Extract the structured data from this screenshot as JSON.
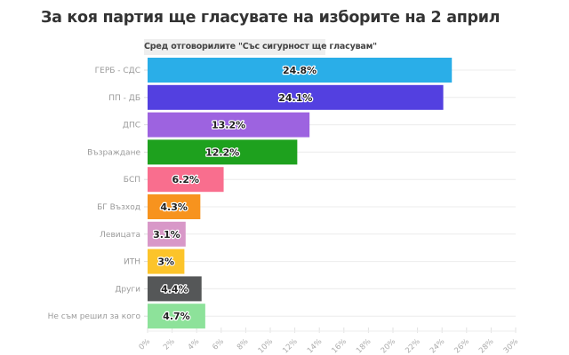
{
  "chart_data": {
    "type": "bar",
    "orientation": "horizontal",
    "title": "За коя партия ще гласувате на изборите на 2 април",
    "subtitle": "Сред отговорилите \"Със сигурност ще гласувам\"",
    "categories": [
      "ГЕРБ - СДС",
      "ПП - ДБ",
      "ДПС",
      "Възраждане",
      "БСП",
      "БГ Възход",
      "Левицата",
      "ИТН",
      "Други",
      "Не съм решил за кого"
    ],
    "values": [
      24.8,
      24.1,
      13.2,
      12.2,
      6.2,
      4.3,
      3.1,
      3,
      4.4,
      4.7
    ],
    "value_labels": [
      "24.8%",
      "24.1%",
      "13.2%",
      "12.2%",
      "6.2%",
      "4.3%",
      "3.1%",
      "3%",
      "4.4%",
      "4.7%"
    ],
    "colors": [
      "#2aaee8",
      "#5340e0",
      "#9d63e0",
      "#1ea11e",
      "#f96e8e",
      "#f7931e",
      "#d898c8",
      "#fcc42a",
      "#555758",
      "#8de29a"
    ],
    "xlim": [
      0,
      30
    ],
    "xticks": [
      "0%",
      "2%",
      "4%",
      "6%",
      "8%",
      "10%",
      "12%",
      "14%",
      "16%",
      "18%",
      "20%",
      "22%",
      "24%",
      "26%",
      "28%",
      "30%"
    ],
    "xlabel": "",
    "ylabel": "",
    "grid": true
  }
}
